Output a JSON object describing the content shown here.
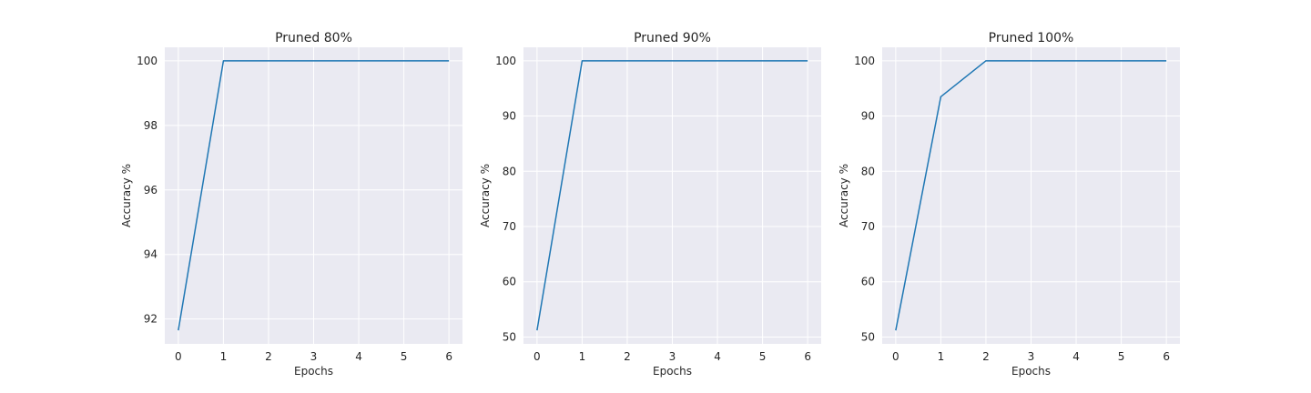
{
  "chart_data": [
    {
      "type": "line",
      "title": "Pruned 80%",
      "xlabel": "Epochs",
      "ylabel": "Accuracy %",
      "x": [
        0,
        1,
        2,
        3,
        4,
        5,
        6
      ],
      "series": [
        {
          "values": [
            91.65,
            100,
            100,
            100,
            100,
            100,
            100
          ]
        }
      ],
      "xlim": [
        -0.3,
        6.3
      ],
      "ylim": [
        91.23,
        100.42
      ],
      "xticks": [
        0,
        1,
        2,
        3,
        4,
        5,
        6
      ],
      "yticks": [
        92,
        94,
        96,
        98,
        100
      ],
      "grid": true
    },
    {
      "type": "line",
      "title": "Pruned 90%",
      "xlabel": "Epochs",
      "ylabel": "Accuracy %",
      "x": [
        0,
        1,
        2,
        3,
        4,
        5,
        6
      ],
      "series": [
        {
          "values": [
            51.2,
            100,
            100,
            100,
            100,
            100,
            100
          ]
        }
      ],
      "xlim": [
        -0.3,
        6.3
      ],
      "ylim": [
        48.76,
        102.44
      ],
      "xticks": [
        0,
        1,
        2,
        3,
        4,
        5,
        6
      ],
      "yticks": [
        50,
        60,
        70,
        80,
        90,
        100
      ],
      "grid": true
    },
    {
      "type": "line",
      "title": "Pruned 100%",
      "xlabel": "Epochs",
      "ylabel": "Accuracy %",
      "x": [
        0,
        1,
        2,
        3,
        4,
        5,
        6
      ],
      "series": [
        {
          "values": [
            51.2,
            93.5,
            100,
            100,
            100,
            100,
            100
          ]
        }
      ],
      "xlim": [
        -0.3,
        6.3
      ],
      "ylim": [
        48.76,
        102.44
      ],
      "xticks": [
        0,
        1,
        2,
        3,
        4,
        5,
        6
      ],
      "yticks": [
        50,
        60,
        70,
        80,
        90,
        100
      ],
      "grid": true
    }
  ]
}
